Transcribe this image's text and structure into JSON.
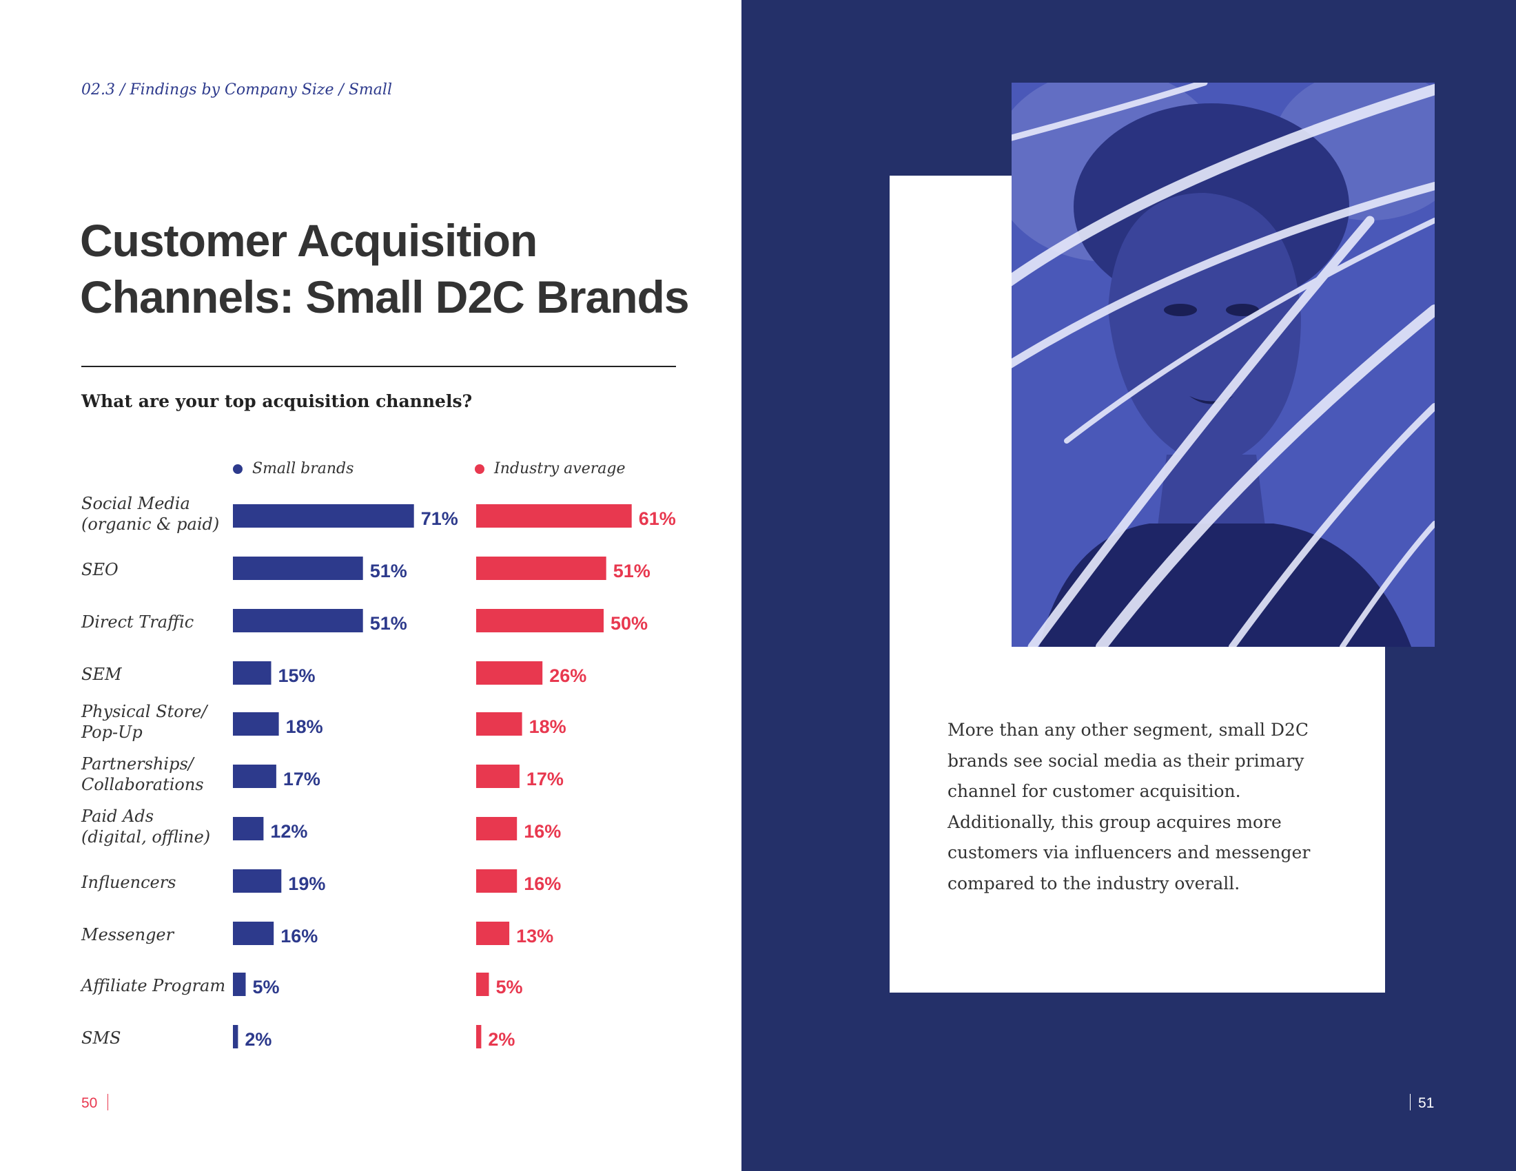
{
  "breadcrumb": "02.3 / Findings by Company Size / Small",
  "title_line1": "Customer Acquisition",
  "title_line2": "Channels: Small D2C Brands",
  "page_left": "50",
  "page_right": "51",
  "body_text": "More than any other segment, small D2C brands see social media as their primary channel for customer acquisition. Additionally, this group acquires more customers via influencers and messenger compared to the industry overall.",
  "colors": {
    "small": "#2d3a8c",
    "industry": "#e8384f",
    "right_bg": "#243069",
    "photo": "#4a58b8"
  },
  "chart_data": {
    "type": "bar",
    "orientation": "horizontal",
    "title": "What are your top acquisition channels?",
    "categories": [
      [
        "Social Media",
        "(organic & paid)"
      ],
      [
        "SEO"
      ],
      [
        "Direct Traffic"
      ],
      [
        "SEM"
      ],
      [
        "Physical Store/",
        "Pop-Up"
      ],
      [
        "Partnerships/",
        "Collaborations"
      ],
      [
        "Paid Ads",
        "(digital, offline)"
      ],
      [
        "Influencers"
      ],
      [
        "Messenger"
      ],
      [
        "Affiliate Program"
      ],
      [
        "SMS"
      ]
    ],
    "series": [
      {
        "name": "Small brands",
        "color": "#2d3a8c",
        "values": [
          71,
          51,
          51,
          15,
          18,
          17,
          12,
          19,
          16,
          5,
          2
        ],
        "labels": [
          "71%",
          "51%",
          "51%",
          "15%",
          "18%",
          "17%",
          "12%",
          "19%",
          "16%",
          "5%",
          "2%"
        ]
      },
      {
        "name": "Industry average",
        "color": "#e8384f",
        "values": [
          61,
          51,
          50,
          26,
          18,
          17,
          16,
          16,
          13,
          5,
          2
        ],
        "labels": [
          "61%",
          "51%",
          "50%",
          "26%",
          "18%",
          "17%",
          "16%",
          "16%",
          "13%",
          "5%",
          "2%"
        ]
      }
    ],
    "xlabel": "",
    "ylabel": "",
    "legend_position": "top"
  }
}
